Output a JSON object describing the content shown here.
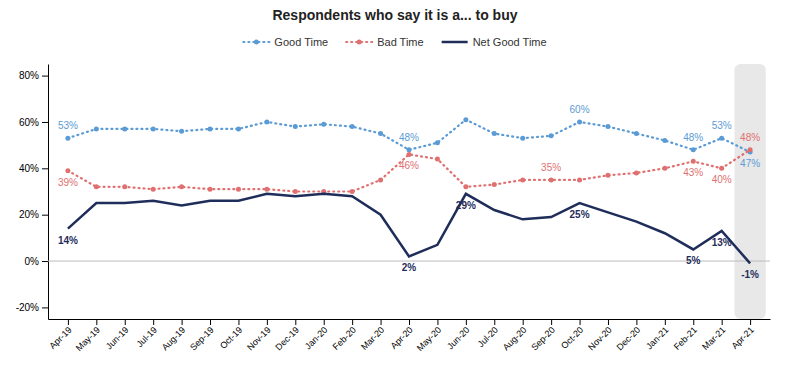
{
  "chart_data": {
    "type": "line",
    "title": "Respondents who say it is a... to buy",
    "categories": [
      "Apr-19",
      "May-19",
      "Jun-19",
      "Jul-19",
      "Aug-19",
      "Sep-19",
      "Oct-19",
      "Nov-19",
      "Dec-19",
      "Jan-20",
      "Feb-20",
      "Mar-20",
      "Apr-20",
      "May-20",
      "Jun-20",
      "Jul-20",
      "Aug-20",
      "Sep-20",
      "Oct-20",
      "Nov-20",
      "Dec-20",
      "Jan-21",
      "Feb-21",
      "Mar-21",
      "Apr-21"
    ],
    "series": [
      {
        "name": "Good Time",
        "color": "#5b9bd5",
        "line_style": "dotted",
        "marker": "circle",
        "values": [
          53,
          57,
          57,
          57,
          56,
          57,
          57,
          60,
          58,
          59,
          58,
          55,
          48,
          51,
          61,
          55,
          53,
          54,
          60,
          58,
          55,
          52,
          48,
          53,
          47
        ],
        "value_labels": [
          "53%",
          null,
          null,
          null,
          null,
          null,
          null,
          null,
          null,
          null,
          null,
          null,
          "48%",
          null,
          null,
          null,
          null,
          null,
          "60%",
          null,
          null,
          null,
          "48%",
          "53%",
          "47%"
        ]
      },
      {
        "name": "Bad Time",
        "color": "#e07070",
        "line_style": "dotted",
        "marker": "circle",
        "values": [
          39,
          32,
          32,
          31,
          32,
          31,
          31,
          31,
          30,
          30,
          30,
          35,
          46,
          44,
          32,
          33,
          35,
          35,
          35,
          37,
          38,
          40,
          43,
          40,
          48
        ],
        "value_labels": [
          "39%",
          null,
          null,
          null,
          null,
          null,
          null,
          null,
          null,
          null,
          null,
          null,
          "46%",
          null,
          null,
          null,
          null,
          "35%",
          null,
          null,
          null,
          null,
          "43%",
          "40%",
          "48%"
        ]
      },
      {
        "name": "Net Good Time",
        "color": "#1f2d5a",
        "line_style": "solid",
        "values": [
          14,
          25,
          25,
          26,
          24,
          26,
          26,
          29,
          28,
          29,
          28,
          20,
          2,
          7,
          29,
          22,
          18,
          19,
          25,
          21,
          17,
          12,
          5,
          13,
          -1
        ],
        "value_labels": [
          "14%",
          null,
          null,
          null,
          null,
          null,
          null,
          null,
          null,
          null,
          null,
          null,
          "2%",
          null,
          "29%",
          null,
          null,
          null,
          "25%",
          null,
          null,
          null,
          "5%",
          "13%",
          "-1%"
        ]
      }
    ],
    "ylim": [
      -25,
      85
    ],
    "yticks": [
      {
        "value": -20,
        "label": "-20%"
      },
      {
        "value": 0,
        "label": "0%"
      },
      {
        "value": 20,
        "label": "20%"
      },
      {
        "value": 40,
        "label": "40%"
      },
      {
        "value": 60,
        "label": "60%"
      },
      {
        "value": 80,
        "label": "80%"
      }
    ],
    "grid": false
  }
}
